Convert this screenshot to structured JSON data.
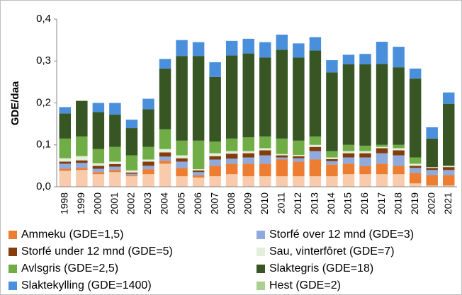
{
  "chart_data": {
    "type": "stacked_bar",
    "y_label": "GDE/daa",
    "categories": [
      "1998",
      "1999",
      "2000",
      "2001",
      "2002",
      "2003",
      "2004",
      "2005",
      "2006",
      "2007",
      "2008",
      "2009",
      "2010",
      "2011",
      "2012",
      "2013",
      "2014",
      "2015",
      "2016",
      "2017",
      "2018",
      "2019",
      "2020",
      "2021"
    ],
    "ylim": [
      0,
      0.4
    ],
    "yticks": [
      {
        "value": 0,
        "label": "0,0"
      },
      {
        "value": 0.1,
        "label": "0,1"
      },
      {
        "value": 0.2,
        "label": "0,2"
      },
      {
        "value": 0.3,
        "label": "0,3"
      },
      {
        "value": 0.4,
        "label": "0,4"
      }
    ],
    "grid": false,
    "series": [
      {
        "color": "#f8cbad",
        "values": [
          0.038,
          0.04,
          0.03,
          0.035,
          0.025,
          0.03,
          0.055,
          0.025,
          0.022,
          0.025,
          0.03,
          0.025,
          0.025,
          0.025,
          0.025,
          0.025,
          0.025,
          0.03,
          0.03,
          0.03,
          0.03,
          0.008,
          0.003,
          0.003
        ]
      },
      {
        "name": "Ammeku (GDE=1,5)",
        "color": "#ed7d31",
        "values": [
          0.005,
          0.005,
          0.005,
          0.005,
          0.003,
          0.012,
          0.007,
          0.02,
          0.005,
          0.025,
          0.025,
          0.03,
          0.03,
          0.04,
          0.035,
          0.04,
          0.028,
          0.025,
          0.02,
          0.025,
          0.02,
          0.025,
          0.025,
          0.025
        ]
      },
      {
        "name": "Storfé over 12 mnd (GDE=3)",
        "color": "#8faadc",
        "values": [
          0.012,
          0.012,
          0.008,
          0.008,
          0.003,
          0.008,
          0.01,
          0.015,
          0.008,
          0.015,
          0.012,
          0.015,
          0.02,
          0.005,
          0.008,
          0.02,
          0.008,
          0.015,
          0.02,
          0.025,
          0.025,
          0.012,
          0.012,
          0.012
        ]
      },
      {
        "name": "Storfé under 12 mnd (GDE=5)",
        "color": "#843c0c",
        "values": [
          0.005,
          0.006,
          0.007,
          0.006,
          0.003,
          0.01,
          0.01,
          0.008,
          0.004,
          0.008,
          0.012,
          0.01,
          0.012,
          0.005,
          0.005,
          0.01,
          0.005,
          0.01,
          0.01,
          0.012,
          0.012,
          0.005,
          0.005,
          0.007
        ]
      },
      {
        "name": "Sau, vinterfôret (GDE=7)",
        "color": "#e2efda",
        "values": [
          0.008,
          0.01,
          0.006,
          0.006,
          0.005,
          0.005,
          0.008,
          0.007,
          0.003,
          0.007,
          0.006,
          0.005,
          0.005,
          0.003,
          0.003,
          0.005,
          0.004,
          0.005,
          0.005,
          0.003,
          0.005,
          0.005,
          0.002,
          0.003
        ]
      },
      {
        "name": "Avlsgris (GDE=2,5)",
        "color": "#70ad47",
        "values": [
          0.047,
          0.047,
          0.034,
          0.035,
          0.036,
          0.03,
          0.047,
          0.035,
          0.068,
          0.028,
          0.03,
          0.033,
          0.028,
          0.037,
          0.034,
          0.02,
          0.015,
          0.015,
          0.013,
          0.005,
          0.008,
          0.015,
          0,
          0
        ]
      },
      {
        "name": "Slaktegris (GDE=18)",
        "color": "#375623",
        "values": [
          0.06,
          0.085,
          0.088,
          0.077,
          0.065,
          0.09,
          0.145,
          0.202,
          0.202,
          0.154,
          0.198,
          0.2,
          0.188,
          0.212,
          0.198,
          0.205,
          0.188,
          0.192,
          0.194,
          0.193,
          0.185,
          0.188,
          0.068,
          0.148
        ]
      },
      {
        "name": "Slaktekylling (GDE=1400)",
        "color": "#4a8fdb",
        "values": [
          0.015,
          0,
          0.022,
          0.028,
          0.02,
          0.025,
          0.023,
          0.038,
          0.033,
          0.035,
          0.035,
          0.035,
          0.037,
          0.036,
          0.034,
          0.032,
          0.029,
          0.023,
          0.025,
          0.053,
          0.049,
          0.024,
          0.027,
          0.027
        ]
      },
      {
        "name": "Hest (GDE=2)",
        "color": "#a9d08e",
        "values": [
          0,
          0,
          0,
          0,
          0,
          0,
          0,
          0,
          0,
          0,
          0,
          0,
          0,
          0,
          0,
          0,
          0,
          0,
          0,
          0,
          0,
          0,
          0,
          0
        ]
      }
    ]
  }
}
